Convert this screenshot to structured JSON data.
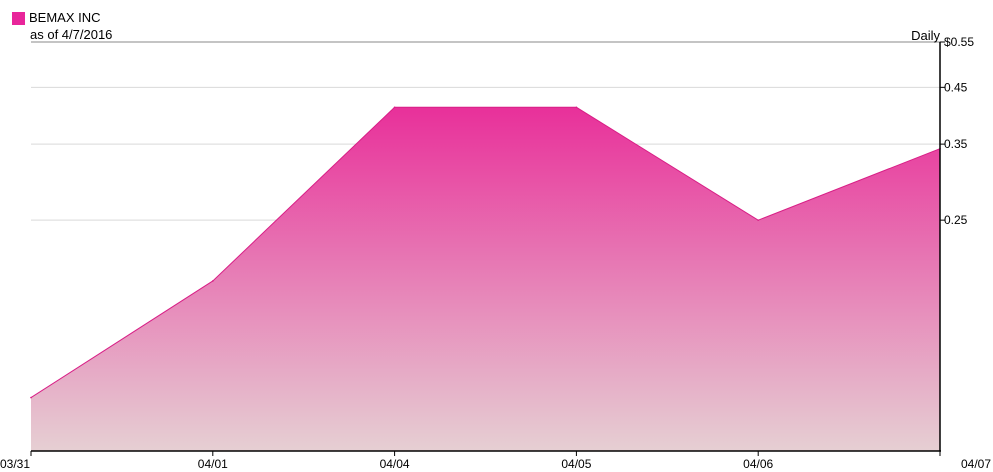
{
  "legend": {
    "series_name": "BEMAX INC",
    "as_of": "as of 4/7/2016",
    "color": "#e8259a"
  },
  "frequency": "Daily",
  "chart_data": {
    "type": "area",
    "x": [
      "03/31",
      "04/01",
      "04/04",
      "04/05",
      "04/06",
      "04/07"
    ],
    "series": [
      {
        "name": "BEMAX INC",
        "values": [
          0.114,
          0.191,
          0.412,
          0.412,
          0.25,
          0.343
        ]
      }
    ],
    "ylim": [
      0.09,
      0.55
    ],
    "yscale": "log",
    "yticks": [
      0.25,
      0.35,
      0.45,
      0.55
    ],
    "ytick_labels": [
      "0.25",
      "0.35",
      "0.45",
      "$0.55"
    ],
    "grid": true,
    "y_axis_position": "right",
    "colors": {
      "fill_top": "#e8309a",
      "fill_bottom": "#e6cfd3",
      "line": "#d81f86",
      "grid": "#d9d9d9"
    }
  }
}
